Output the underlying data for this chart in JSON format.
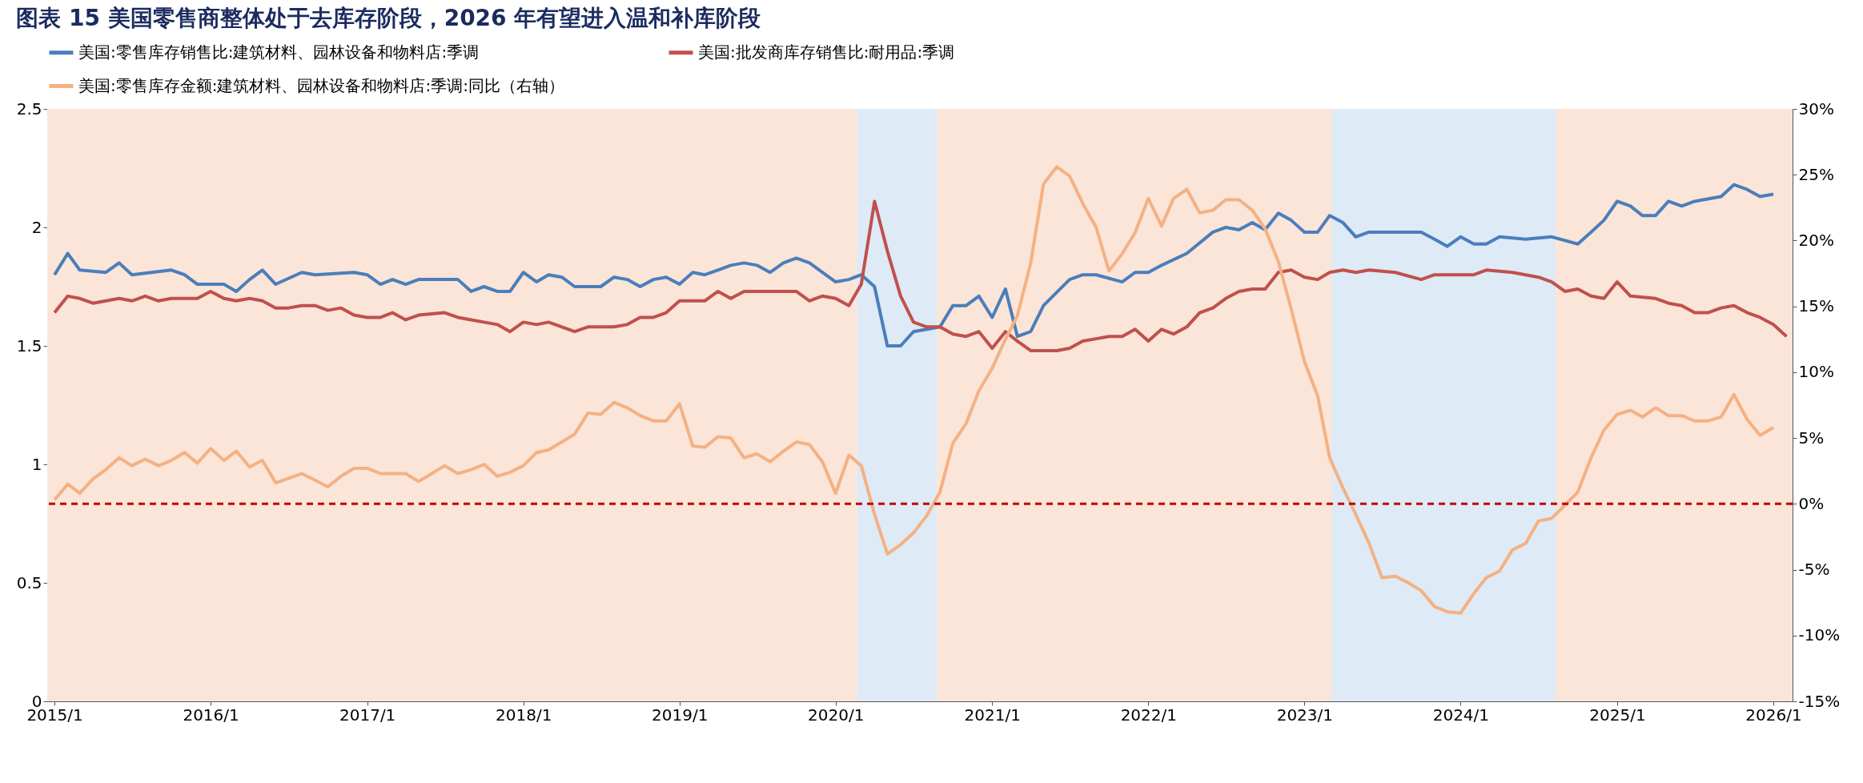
{
  "chart_data": {
    "type": "line",
    "title": "图表 15   美国零售商整体处于去库存阶段，2026 年有望进入温和补库阶段",
    "legend": "top",
    "grid": false,
    "marker": "none",
    "line_style": "solid",
    "xlim": [
      "2014-12-15",
      "2026-02-15"
    ],
    "xticks": [
      {
        "value": "2015-01",
        "label": "2015/1"
      },
      {
        "value": "2016-01",
        "label": "2016/1"
      },
      {
        "value": "2017-01",
        "label": "2017/1"
      },
      {
        "value": "2018-01",
        "label": "2018/1"
      },
      {
        "value": "2019-01",
        "label": "2019/1"
      },
      {
        "value": "2020-01",
        "label": "2020/1"
      },
      {
        "value": "2021-01",
        "label": "2021/1"
      },
      {
        "value": "2022-01",
        "label": "2022/1"
      },
      {
        "value": "2023-01",
        "label": "2023/1"
      },
      {
        "value": "2024-01",
        "label": "2024/1"
      },
      {
        "value": "2025-01",
        "label": "2025/1"
      },
      {
        "value": "2026-01",
        "label": "2026/1"
      }
    ],
    "ylim": [
      0,
      2.5
    ],
    "yticks": [
      0,
      0.5,
      1,
      1.5,
      2,
      2.5
    ],
    "y2lim": [
      -15,
      30
    ],
    "y2ticks": [
      {
        "value": -15,
        "label": "-15%"
      },
      {
        "value": -10,
        "label": "-10%"
      },
      {
        "value": -5,
        "label": "-5%"
      },
      {
        "value": 0,
        "label": "0%"
      },
      {
        "value": 5,
        "label": "5%"
      },
      {
        "value": 10,
        "label": "10%"
      },
      {
        "value": 15,
        "label": "15%"
      },
      {
        "value": 20,
        "label": "20%"
      },
      {
        "value": 25,
        "label": "25%"
      },
      {
        "value": 30,
        "label": "30%"
      }
    ],
    "bands": [
      {
        "axis": "x",
        "from": "2014-12-15",
        "to": "2020-02-20",
        "color": "#fae5d8"
      },
      {
        "axis": "x",
        "from": "2020-02-20",
        "to": "2020-08-25",
        "color": "#deeaf6"
      },
      {
        "axis": "x",
        "from": "2020-08-25",
        "to": "2023-03-05",
        "color": "#fae5d8"
      },
      {
        "axis": "x",
        "from": "2023-03-05",
        "to": "2024-08-10",
        "color": "#deeaf6"
      },
      {
        "axis": "x",
        "from": "2024-08-10",
        "to": "2026-02-15",
        "color": "#fae5d8"
      }
    ],
    "ref_lines": [
      {
        "axis": "y2",
        "value": 0,
        "color": "#c00000",
        "line_style": "dashed"
      }
    ],
    "series": [
      {
        "name": "美国:零售库存销售比:建筑材料、园林设备和物料店:季调",
        "color": "#4a7ebb",
        "x": [
          "2015-01",
          "2015-02",
          "2015-03",
          "2015-05",
          "2015-06",
          "2015-07",
          "2015-10",
          "2015-11",
          "2015-12",
          "2016-02",
          "2016-03",
          "2016-04",
          "2016-05",
          "2016-06",
          "2016-08",
          "2016-09",
          "2016-12",
          "2017-01",
          "2017-02",
          "2017-03",
          "2017-04",
          "2017-05",
          "2017-08",
          "2017-09",
          "2017-10",
          "2017-11",
          "2017-12",
          "2018-01",
          "2018-02",
          "2018-03",
          "2018-04",
          "2018-05",
          "2018-07",
          "2018-08",
          "2018-09",
          "2018-10",
          "2018-11",
          "2018-12",
          "2019-01",
          "2019-02",
          "2019-03",
          "2019-04",
          "2019-05",
          "2019-06",
          "2019-07",
          "2019-08",
          "2019-09",
          "2019-10",
          "2019-11",
          "2020-01",
          "2020-02",
          "2020-03",
          "2020-04",
          "2020-05",
          "2020-06",
          "2020-07",
          "2020-09",
          "2020-10",
          "2020-11",
          "2020-12",
          "2021-01",
          "2021-02",
          "2021-03",
          "2021-04",
          "2021-05",
          "2021-07",
          "2021-08",
          "2021-09",
          "2021-11",
          "2021-12",
          "2022-01",
          "2022-02",
          "2022-04",
          "2022-06",
          "2022-07",
          "2022-08",
          "2022-09",
          "2022-10",
          "2022-11",
          "2022-12",
          "2023-01",
          "2023-02",
          "2023-03",
          "2023-04",
          "2023-05",
          "2023-06",
          "2023-10",
          "2023-11",
          "2023-12",
          "2024-01",
          "2024-02",
          "2024-03",
          "2024-04",
          "2024-06",
          "2024-08",
          "2024-10",
          "2024-11",
          "2024-12",
          "2025-01",
          "2025-02",
          "2025-03",
          "2025-04",
          "2025-05",
          "2025-06",
          "2025-07",
          "2025-08",
          "2025-09",
          "2025-10",
          "2025-11",
          "2025-12",
          "2026-01"
        ],
        "values": [
          1.8,
          1.89,
          1.82,
          1.81,
          1.85,
          1.8,
          1.82,
          1.8,
          1.76,
          1.76,
          1.73,
          1.78,
          1.82,
          1.76,
          1.81,
          1.8,
          1.81,
          1.8,
          1.76,
          1.78,
          1.76,
          1.78,
          1.78,
          1.73,
          1.75,
          1.73,
          1.73,
          1.81,
          1.77,
          1.8,
          1.79,
          1.75,
          1.75,
          1.79,
          1.78,
          1.75,
          1.78,
          1.79,
          1.76,
          1.81,
          1.8,
          1.82,
          1.84,
          1.85,
          1.84,
          1.81,
          1.85,
          1.87,
          1.85,
          1.77,
          1.78,
          1.8,
          1.75,
          1.5,
          1.5,
          1.56,
          1.58,
          1.67,
          1.67,
          1.71,
          1.62,
          1.74,
          1.54,
          1.56,
          1.67,
          1.78,
          1.8,
          1.8,
          1.77,
          1.81,
          1.81,
          1.84,
          1.89,
          1.98,
          2.0,
          1.99,
          2.02,
          1.99,
          2.06,
          2.03,
          1.98,
          1.98,
          2.05,
          2.02,
          1.96,
          1.98,
          1.98,
          1.95,
          1.92,
          1.96,
          1.93,
          1.93,
          1.96,
          1.95,
          1.96,
          1.93,
          1.98,
          2.03,
          2.11,
          2.09,
          2.05,
          2.05,
          2.11,
          2.09,
          2.11,
          2.12,
          2.13,
          2.18,
          2.16,
          2.13,
          2.14
        ]
      },
      {
        "name": "美国:批发商库存销售比:耐用品:季调",
        "color": "#c0504d",
        "x": [
          "2015-01",
          "2015-02",
          "2015-03",
          "2015-04",
          "2015-06",
          "2015-07",
          "2015-08",
          "2015-09",
          "2015-10",
          "2015-12",
          "2016-01",
          "2016-02",
          "2016-03",
          "2016-04",
          "2016-05",
          "2016-06",
          "2016-07",
          "2016-08",
          "2016-09",
          "2016-10",
          "2016-11",
          "2016-12",
          "2017-01",
          "2017-02",
          "2017-03",
          "2017-04",
          "2017-05",
          "2017-07",
          "2017-08",
          "2017-09",
          "2017-10",
          "2017-11",
          "2017-12",
          "2018-01",
          "2018-02",
          "2018-03",
          "2018-04",
          "2018-05",
          "2018-06",
          "2018-08",
          "2018-09",
          "2018-10",
          "2018-11",
          "2018-12",
          "2019-01",
          "2019-03",
          "2019-04",
          "2019-05",
          "2019-06",
          "2019-09",
          "2019-10",
          "2019-11",
          "2019-12",
          "2020-01",
          "2020-02",
          "2020-03",
          "2020-04",
          "2020-05",
          "2020-06",
          "2020-07",
          "2020-08",
          "2020-09",
          "2020-10",
          "2020-11",
          "2020-12",
          "2021-01",
          "2021-02",
          "2021-03",
          "2021-04",
          "2021-06",
          "2021-07",
          "2021-08",
          "2021-09",
          "2021-10",
          "2021-11",
          "2021-12",
          "2022-01",
          "2022-02",
          "2022-03",
          "2022-04",
          "2022-05",
          "2022-06",
          "2022-07",
          "2022-08",
          "2022-09",
          "2022-10",
          "2022-11",
          "2022-12",
          "2023-01",
          "2023-02",
          "2023-03",
          "2023-04",
          "2023-05",
          "2023-06",
          "2023-08",
          "2023-10",
          "2023-11",
          "2024-02",
          "2024-03",
          "2024-05",
          "2024-07",
          "2024-08",
          "2024-09",
          "2024-10",
          "2024-11",
          "2024-12",
          "2025-01",
          "2025-02",
          "2025-04",
          "2025-05",
          "2025-06",
          "2025-07",
          "2025-08",
          "2025-09",
          "2025-10",
          "2025-11",
          "2025-12",
          "2026-01",
          "2026-02"
        ],
        "values": [
          1.64,
          1.71,
          1.7,
          1.68,
          1.7,
          1.69,
          1.71,
          1.69,
          1.7,
          1.7,
          1.73,
          1.7,
          1.69,
          1.7,
          1.69,
          1.66,
          1.66,
          1.67,
          1.67,
          1.65,
          1.66,
          1.63,
          1.62,
          1.62,
          1.64,
          1.61,
          1.63,
          1.64,
          1.62,
          1.61,
          1.6,
          1.59,
          1.56,
          1.6,
          1.59,
          1.6,
          1.58,
          1.56,
          1.58,
          1.58,
          1.59,
          1.62,
          1.62,
          1.64,
          1.69,
          1.69,
          1.73,
          1.7,
          1.73,
          1.73,
          1.73,
          1.69,
          1.71,
          1.7,
          1.67,
          1.76,
          2.11,
          1.9,
          1.71,
          1.6,
          1.58,
          1.58,
          1.55,
          1.54,
          1.56,
          1.49,
          1.56,
          1.52,
          1.48,
          1.48,
          1.49,
          1.52,
          1.53,
          1.54,
          1.54,
          1.57,
          1.52,
          1.57,
          1.55,
          1.58,
          1.64,
          1.66,
          1.7,
          1.73,
          1.74,
          1.74,
          1.81,
          1.82,
          1.79,
          1.78,
          1.81,
          1.82,
          1.81,
          1.82,
          1.81,
          1.78,
          1.8,
          1.8,
          1.82,
          1.81,
          1.79,
          1.77,
          1.73,
          1.74,
          1.71,
          1.7,
          1.77,
          1.71,
          1.7,
          1.68,
          1.67,
          1.64,
          1.64,
          1.66,
          1.67,
          1.64,
          1.62,
          1.59,
          1.54
        ]
      },
      {
        "name": "美国:零售库存金额:建筑材料、园林设备和物料店:季调:同比（右轴）",
        "color": "#f4b183",
        "axis": "y2",
        "x": [
          "2015-01",
          "2015-02",
          "2015-03",
          "2015-04",
          "2015-05",
          "2015-06",
          "2015-07",
          "2015-08",
          "2015-09",
          "2015-10",
          "2015-11",
          "2015-12",
          "2016-01",
          "2016-02",
          "2016-03",
          "2016-04",
          "2016-05",
          "2016-06",
          "2016-08",
          "2016-09",
          "2016-10",
          "2016-11",
          "2016-12",
          "2017-01",
          "2017-02",
          "2017-04",
          "2017-05",
          "2017-06",
          "2017-07",
          "2017-08",
          "2017-09",
          "2017-10",
          "2017-11",
          "2017-12",
          "2018-01",
          "2018-02",
          "2018-03",
          "2018-04",
          "2018-05",
          "2018-06",
          "2018-07",
          "2018-08",
          "2018-09",
          "2018-10",
          "2018-11",
          "2018-12",
          "2019-01",
          "2019-02",
          "2019-03",
          "2019-04",
          "2019-05",
          "2019-06",
          "2019-07",
          "2019-08",
          "2019-09",
          "2019-10",
          "2019-11",
          "2019-12",
          "2020-01",
          "2020-02",
          "2020-03",
          "2020-04",
          "2020-05",
          "2020-06",
          "2020-07",
          "2020-08",
          "2020-09",
          "2020-10",
          "2020-11",
          "2020-12",
          "2021-01",
          "2021-02",
          "2021-03",
          "2021-04",
          "2021-05",
          "2021-06",
          "2021-07",
          "2021-08",
          "2021-09",
          "2021-10",
          "2021-11",
          "2021-12",
          "2022-01",
          "2022-02",
          "2022-03",
          "2022-04",
          "2022-05",
          "2022-06",
          "2022-07",
          "2022-08",
          "2022-09",
          "2022-10",
          "2022-11",
          "2022-12",
          "2023-01",
          "2023-02",
          "2023-03",
          "2023-04",
          "2023-05",
          "2023-06",
          "2023-07",
          "2023-08",
          "2023-09",
          "2023-10",
          "2023-11",
          "2023-12",
          "2024-01",
          "2024-02",
          "2024-03",
          "2024-04",
          "2024-05",
          "2024-06",
          "2024-07",
          "2024-08",
          "2024-09",
          "2024-10",
          "2024-11",
          "2024-12",
          "2025-01",
          "2025-02",
          "2025-03",
          "2025-04",
          "2025-05",
          "2025-06",
          "2025-07",
          "2025-08",
          "2025-09",
          "2025-10",
          "2025-11",
          "2025-12",
          "2026-01"
        ],
        "values": [
          0.3,
          1.5,
          0.8,
          1.9,
          2.6,
          3.5,
          2.9,
          3.4,
          2.9,
          3.3,
          3.9,
          3.1,
          4.2,
          3.3,
          4.0,
          2.8,
          3.3,
          1.6,
          2.3,
          1.8,
          1.3,
          2.1,
          2.7,
          2.7,
          2.3,
          2.3,
          1.7,
          2.3,
          2.9,
          2.3,
          2.6,
          3.0,
          2.1,
          2.4,
          2.9,
          3.9,
          4.1,
          4.7,
          5.3,
          6.9,
          6.8,
          7.7,
          7.3,
          6.7,
          6.3,
          6.3,
          7.6,
          4.4,
          4.3,
          5.1,
          5.0,
          3.5,
          3.8,
          3.2,
          4.0,
          4.7,
          4.5,
          3.2,
          0.8,
          3.7,
          2.9,
          -0.8,
          -3.8,
          -3.1,
          -2.2,
          -0.9,
          0.9,
          4.6,
          6.1,
          8.6,
          10.3,
          12.5,
          14.3,
          18.3,
          24.3,
          25.6,
          24.9,
          22.8,
          21.0,
          17.7,
          19.0,
          20.6,
          23.2,
          21.1,
          23.2,
          23.9,
          22.1,
          22.3,
          23.1,
          23.1,
          22.3,
          20.9,
          18.4,
          14.8,
          10.8,
          8.2,
          3.5,
          1.2,
          -0.8,
          -3.0,
          -5.6,
          -5.5,
          -6.0,
          -6.6,
          -7.8,
          -8.2,
          -8.3,
          -6.8,
          -5.6,
          -5.1,
          -3.5,
          -3.0,
          -1.3,
          -1.1,
          -0.1,
          0.9,
          3.5,
          5.6,
          6.8,
          7.1,
          6.6,
          7.3,
          6.7,
          6.7,
          6.3,
          6.3,
          6.6,
          8.3,
          6.4,
          5.2,
          5.8
        ]
      }
    ]
  }
}
